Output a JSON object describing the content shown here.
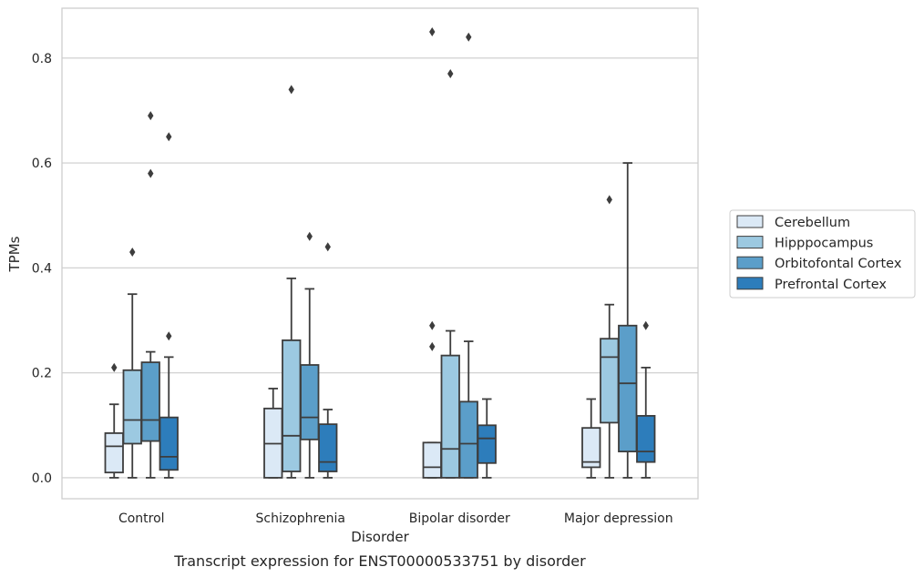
{
  "chart_data": {
    "type": "box",
    "title": "",
    "caption": "Transcript expression for ENST00000533751 by disorder",
    "xlabel": "Disorder",
    "ylabel": "TPMs",
    "ylim": [
      -0.04,
      0.895
    ],
    "yticks": [
      "0.0",
      "0.2",
      "0.4",
      "0.6",
      "0.8"
    ],
    "ytick_values": [
      0.0,
      0.2,
      0.4,
      0.6,
      0.8
    ],
    "grid": "horizontal",
    "legend_position": "right",
    "categories": [
      "Control",
      "Schizophrenia",
      "Bipolar disorder",
      "Major depression"
    ],
    "series": [
      {
        "name": "Cerebellum",
        "color": "#dbe9f6",
        "boxes": [
          {
            "whislo": 0.0,
            "q1": 0.01,
            "med": 0.06,
            "q3": 0.085,
            "whishi": 0.14,
            "fliers": [
              0.21
            ]
          },
          {
            "whislo": 0.0,
            "q1": 0.0,
            "med": 0.065,
            "q3": 0.132,
            "whishi": 0.17,
            "fliers": []
          },
          {
            "whislo": 0.0,
            "q1": 0.0,
            "med": 0.02,
            "q3": 0.067,
            "whishi": 0.067,
            "fliers": [
              0.29,
              0.25,
              0.85
            ]
          },
          {
            "whislo": 0.0,
            "q1": 0.02,
            "med": 0.03,
            "q3": 0.095,
            "whishi": 0.15,
            "fliers": []
          }
        ]
      },
      {
        "name": "Hipppocampus",
        "color": "#9cc9e1",
        "boxes": [
          {
            "whislo": 0.0,
            "q1": 0.065,
            "med": 0.11,
            "q3": 0.205,
            "whishi": 0.35,
            "fliers": [
              0.43
            ]
          },
          {
            "whislo": 0.0,
            "q1": 0.012,
            "med": 0.08,
            "q3": 0.262,
            "whishi": 0.38,
            "fliers": [
              0.74
            ]
          },
          {
            "whislo": 0.0,
            "q1": 0.0,
            "med": 0.055,
            "q3": 0.233,
            "whishi": 0.28,
            "fliers": [
              0.77
            ]
          },
          {
            "whislo": 0.0,
            "q1": 0.105,
            "med": 0.23,
            "q3": 0.265,
            "whishi": 0.33,
            "fliers": [
              0.53
            ]
          }
        ]
      },
      {
        "name": "Orbitofontal Cortex",
        "color": "#5b9ec9",
        "boxes": [
          {
            "whislo": 0.0,
            "q1": 0.07,
            "med": 0.11,
            "q3": 0.22,
            "whishi": 0.24,
            "fliers": [
              0.58,
              0.69
            ]
          },
          {
            "whislo": 0.0,
            "q1": 0.073,
            "med": 0.115,
            "q3": 0.215,
            "whishi": 0.36,
            "fliers": [
              0.46
            ]
          },
          {
            "whislo": 0.0,
            "q1": 0.0,
            "med": 0.065,
            "q3": 0.145,
            "whishi": 0.26,
            "fliers": [
              0.84
            ]
          },
          {
            "whislo": 0.0,
            "q1": 0.05,
            "med": 0.18,
            "q3": 0.29,
            "whishi": 0.6,
            "fliers": []
          }
        ]
      },
      {
        "name": "Prefrontal Cortex",
        "color": "#2d7dbb",
        "boxes": [
          {
            "whislo": 0.0,
            "q1": 0.015,
            "med": 0.04,
            "q3": 0.115,
            "whishi": 0.23,
            "fliers": [
              0.27,
              0.65
            ]
          },
          {
            "whislo": 0.0,
            "q1": 0.012,
            "med": 0.03,
            "q3": 0.102,
            "whishi": 0.13,
            "fliers": [
              0.44
            ]
          },
          {
            "whislo": 0.0,
            "q1": 0.028,
            "med": 0.075,
            "q3": 0.1,
            "whishi": 0.15,
            "fliers": []
          },
          {
            "whislo": 0.0,
            "q1": 0.03,
            "med": 0.05,
            "q3": 0.118,
            "whishi": 0.21,
            "fliers": [
              0.29
            ]
          }
        ]
      }
    ]
  }
}
